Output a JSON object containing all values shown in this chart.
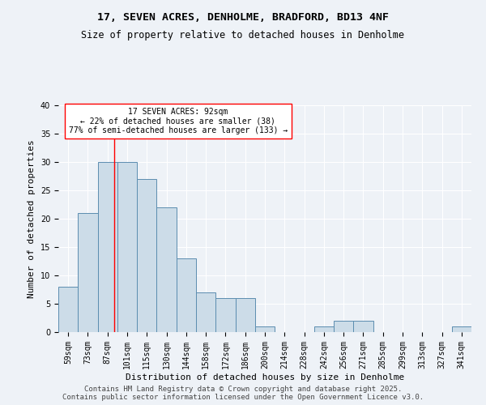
{
  "title_line1": "17, SEVEN ACRES, DENHOLME, BRADFORD, BD13 4NF",
  "title_line2": "Size of property relative to detached houses in Denholme",
  "xlabel": "Distribution of detached houses by size in Denholme",
  "ylabel": "Number of detached properties",
  "categories": [
    "59sqm",
    "73sqm",
    "87sqm",
    "101sqm",
    "115sqm",
    "130sqm",
    "144sqm",
    "158sqm",
    "172sqm",
    "186sqm",
    "200sqm",
    "214sqm",
    "228sqm",
    "242sqm",
    "256sqm",
    "271sqm",
    "285sqm",
    "299sqm",
    "313sqm",
    "327sqm",
    "341sqm"
  ],
  "values": [
    8,
    21,
    30,
    30,
    27,
    22,
    13,
    7,
    6,
    6,
    1,
    0,
    0,
    1,
    2,
    2,
    0,
    0,
    0,
    0,
    1
  ],
  "bar_color": "#ccdce8",
  "bar_edge_color": "#5b8db0",
  "ylim": [
    0,
    40
  ],
  "yticks": [
    0,
    5,
    10,
    15,
    20,
    25,
    30,
    35,
    40
  ],
  "annotation_text": "17 SEVEN ACRES: 92sqm\n← 22% of detached houses are smaller (38)\n77% of semi-detached houses are larger (133) →",
  "footer_line1": "Contains HM Land Registry data © Crown copyright and database right 2025.",
  "footer_line2": "Contains public sector information licensed under the Open Government Licence v3.0.",
  "background_color": "#eef2f7",
  "grid_color": "#ffffff",
  "title_fontsize": 9.5,
  "subtitle_fontsize": 8.5,
  "axis_label_fontsize": 8,
  "tick_fontsize": 7,
  "annotation_fontsize": 7,
  "footer_fontsize": 6.5
}
